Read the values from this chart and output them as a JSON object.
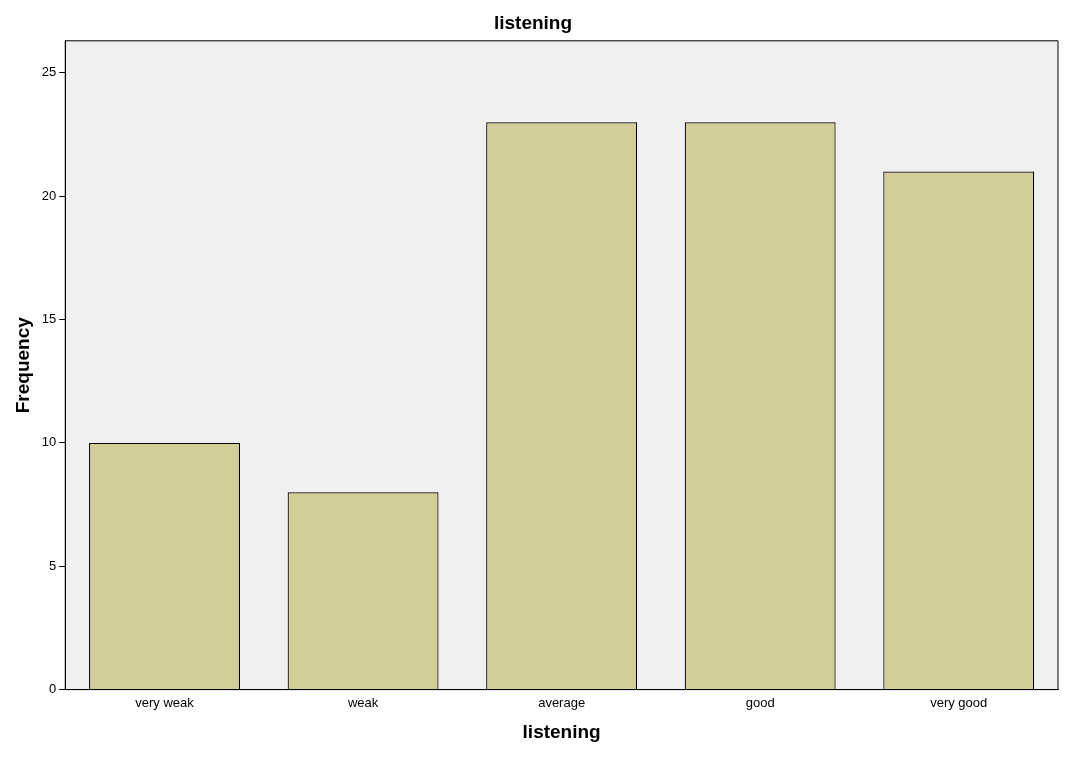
{
  "chart_data": {
    "type": "bar",
    "title": "listening",
    "xlabel": "listening",
    "ylabel": "Frequency",
    "categories": [
      "very weak",
      "weak",
      "average",
      "good",
      "very good"
    ],
    "values": [
      10,
      8,
      23,
      23,
      21
    ],
    "color": "#d3cd98",
    "ylim": [
      0,
      26.3
    ],
    "yticks": [
      0,
      5,
      10,
      15,
      20,
      25
    ],
    "grid": false,
    "legend": false
  }
}
